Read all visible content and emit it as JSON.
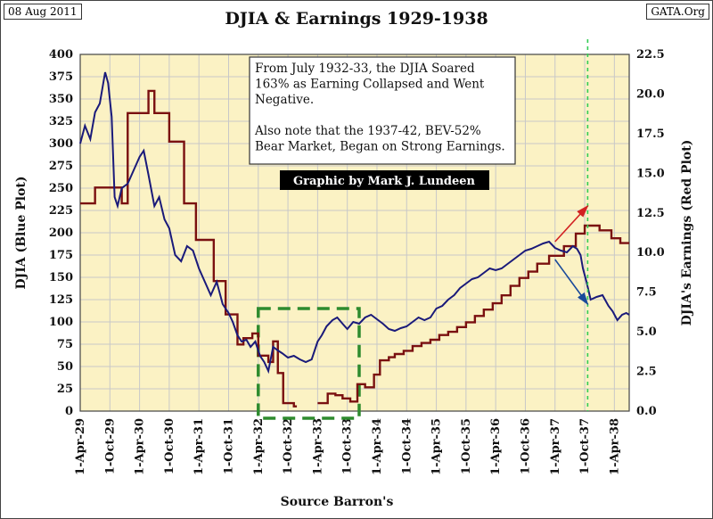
{
  "header": {
    "date": "08 Aug 2011",
    "source": "GATA.Org"
  },
  "chart_data": {
    "type": "line",
    "title": "DJIA & Earnings 1929-1938",
    "xlabel": "Source Barron's",
    "ylabel_left": "DJIA (Blue Plot)",
    "ylabel_right": "DJIA's Earnings (Red Plot)",
    "y_left_range": [
      0,
      400
    ],
    "y_right_range": [
      0,
      22.5
    ],
    "y_left_ticks": [
      "0",
      "25",
      "50",
      "75",
      "100",
      "125",
      "150",
      "175",
      "200",
      "225",
      "250",
      "275",
      "300",
      "325",
      "350",
      "375",
      "400"
    ],
    "y_right_ticks": [
      "0.0",
      "2.5",
      "5.0",
      "7.5",
      "10.0",
      "12.5",
      "15.0",
      "17.5",
      "20.0",
      "22.5"
    ],
    "x_range": [
      1929.25,
      1938.5
    ],
    "x_ticks": [
      {
        "x": 1929.25,
        "label": "1-Apr-29"
      },
      {
        "x": 1929.75,
        "label": "1-Oct-29"
      },
      {
        "x": 1930.25,
        "label": "1-Apr-30"
      },
      {
        "x": 1930.75,
        "label": "1-Oct-30"
      },
      {
        "x": 1931.25,
        "label": "1-Apr-31"
      },
      {
        "x": 1931.75,
        "label": "1-Oct-31"
      },
      {
        "x": 1932.25,
        "label": "1-Apr-32"
      },
      {
        "x": 1932.75,
        "label": "1-Oct-32"
      },
      {
        "x": 1933.25,
        "label": "1-Apr-33"
      },
      {
        "x": 1933.75,
        "label": "1-Oct-33"
      },
      {
        "x": 1934.25,
        "label": "1-Apr-34"
      },
      {
        "x": 1934.75,
        "label": "1-Oct-34"
      },
      {
        "x": 1935.25,
        "label": "1-Apr-35"
      },
      {
        "x": 1935.75,
        "label": "1-Oct-35"
      },
      {
        "x": 1936.25,
        "label": "1-Apr-36"
      },
      {
        "x": 1936.75,
        "label": "1-Oct-36"
      },
      {
        "x": 1937.25,
        "label": "1-Apr-37"
      },
      {
        "x": 1937.75,
        "label": "1-Oct-37"
      },
      {
        "x": 1938.25,
        "label": "1-Apr-38"
      }
    ],
    "grid": true,
    "series": [
      {
        "name": "DJIA",
        "axis": "left",
        "color": "#1a1a7a",
        "points": [
          [
            1929.25,
            300
          ],
          [
            1929.33,
            320
          ],
          [
            1929.42,
            305
          ],
          [
            1929.5,
            335
          ],
          [
            1929.58,
            345
          ],
          [
            1929.67,
            380
          ],
          [
            1929.72,
            368
          ],
          [
            1929.78,
            330
          ],
          [
            1929.83,
            240
          ],
          [
            1929.88,
            230
          ],
          [
            1929.95,
            250
          ],
          [
            1930.05,
            255
          ],
          [
            1930.15,
            270
          ],
          [
            1930.25,
            285
          ],
          [
            1930.32,
            292
          ],
          [
            1930.4,
            265
          ],
          [
            1930.5,
            230
          ],
          [
            1930.58,
            240
          ],
          [
            1930.67,
            215
          ],
          [
            1930.75,
            205
          ],
          [
            1930.85,
            175
          ],
          [
            1930.95,
            168
          ],
          [
            1931.05,
            185
          ],
          [
            1931.15,
            180
          ],
          [
            1931.25,
            160
          ],
          [
            1931.35,
            145
          ],
          [
            1931.45,
            130
          ],
          [
            1931.55,
            145
          ],
          [
            1931.65,
            120
          ],
          [
            1931.75,
            110
          ],
          [
            1931.82,
            100
          ],
          [
            1931.9,
            85
          ],
          [
            1931.97,
            78
          ],
          [
            1932.05,
            80
          ],
          [
            1932.12,
            72
          ],
          [
            1932.2,
            78
          ],
          [
            1932.28,
            62
          ],
          [
            1932.35,
            55
          ],
          [
            1932.42,
            45
          ],
          [
            1932.5,
            72
          ],
          [
            1932.58,
            68
          ],
          [
            1932.65,
            65
          ],
          [
            1932.75,
            60
          ],
          [
            1932.85,
            62
          ],
          [
            1932.95,
            58
          ],
          [
            1933.05,
            55
          ],
          [
            1933.15,
            58
          ],
          [
            1933.25,
            78
          ],
          [
            1933.32,
            85
          ],
          [
            1933.4,
            95
          ],
          [
            1933.5,
            102
          ],
          [
            1933.58,
            105
          ],
          [
            1933.67,
            98
          ],
          [
            1933.75,
            92
          ],
          [
            1933.85,
            100
          ],
          [
            1933.95,
            98
          ],
          [
            1934.05,
            105
          ],
          [
            1934.15,
            108
          ],
          [
            1934.25,
            103
          ],
          [
            1934.35,
            98
          ],
          [
            1934.45,
            92
          ],
          [
            1934.55,
            90
          ],
          [
            1934.65,
            93
          ],
          [
            1934.75,
            95
          ],
          [
            1934.85,
            100
          ],
          [
            1934.95,
            105
          ],
          [
            1935.05,
            102
          ],
          [
            1935.15,
            105
          ],
          [
            1935.25,
            115
          ],
          [
            1935.35,
            118
          ],
          [
            1935.45,
            125
          ],
          [
            1935.55,
            130
          ],
          [
            1935.65,
            138
          ],
          [
            1935.75,
            143
          ],
          [
            1935.85,
            148
          ],
          [
            1935.95,
            150
          ],
          [
            1936.05,
            155
          ],
          [
            1936.15,
            160
          ],
          [
            1936.25,
            158
          ],
          [
            1936.35,
            160
          ],
          [
            1936.45,
            165
          ],
          [
            1936.55,
            170
          ],
          [
            1936.65,
            175
          ],
          [
            1936.75,
            180
          ],
          [
            1936.85,
            182
          ],
          [
            1936.95,
            185
          ],
          [
            1937.05,
            188
          ],
          [
            1937.15,
            190
          ],
          [
            1937.25,
            183
          ],
          [
            1937.35,
            180
          ],
          [
            1937.45,
            178
          ],
          [
            1937.55,
            185
          ],
          [
            1937.62,
            182
          ],
          [
            1937.68,
            175
          ],
          [
            1937.72,
            160
          ],
          [
            1937.78,
            145
          ],
          [
            1937.85,
            125
          ],
          [
            1937.95,
            128
          ],
          [
            1938.05,
            130
          ],
          [
            1938.15,
            118
          ],
          [
            1938.22,
            112
          ],
          [
            1938.3,
            102
          ],
          [
            1938.38,
            108
          ],
          [
            1938.45,
            110
          ],
          [
            1938.5,
            108
          ]
        ]
      },
      {
        "name": "Earnings",
        "axis": "right",
        "color": "#7a1010",
        "steps": [
          [
            1929.25,
            13.1
          ],
          [
            1929.5,
            14.1
          ],
          [
            1929.95,
            13.1
          ],
          [
            1930.05,
            18.8
          ],
          [
            1930.32,
            18.8
          ],
          [
            1930.4,
            20.2
          ],
          [
            1930.5,
            18.8
          ],
          [
            1930.75,
            17.0
          ],
          [
            1931.0,
            13.1
          ],
          [
            1931.2,
            10.8
          ],
          [
            1931.5,
            8.2
          ],
          [
            1931.7,
            6.1
          ],
          [
            1931.9,
            4.2
          ],
          [
            1932.0,
            4.6
          ],
          [
            1932.15,
            4.9
          ],
          [
            1932.25,
            3.5
          ],
          [
            1932.42,
            3.1
          ],
          [
            1932.5,
            4.4
          ],
          [
            1932.58,
            2.4
          ],
          [
            1932.67,
            0.5
          ],
          [
            1932.85,
            0.3
          ],
          [
            1932.9,
            null
          ],
          [
            1933.25,
            0.5
          ],
          [
            1933.42,
            1.1
          ],
          [
            1933.55,
            1.0
          ],
          [
            1933.67,
            0.8
          ],
          [
            1933.8,
            0.6
          ],
          [
            1933.92,
            1.7
          ],
          [
            1934.05,
            1.5
          ],
          [
            1934.2,
            2.3
          ],
          [
            1934.3,
            3.2
          ],
          [
            1934.45,
            3.4
          ],
          [
            1934.55,
            3.6
          ],
          [
            1934.7,
            3.8
          ],
          [
            1934.85,
            4.1
          ],
          [
            1935.0,
            4.3
          ],
          [
            1935.15,
            4.5
          ],
          [
            1935.3,
            4.8
          ],
          [
            1935.45,
            5.0
          ],
          [
            1935.6,
            5.3
          ],
          [
            1935.75,
            5.6
          ],
          [
            1935.9,
            6.0
          ],
          [
            1936.05,
            6.4
          ],
          [
            1936.2,
            6.8
          ],
          [
            1936.35,
            7.3
          ],
          [
            1936.5,
            7.9
          ],
          [
            1936.65,
            8.4
          ],
          [
            1936.8,
            8.8
          ],
          [
            1936.95,
            9.3
          ],
          [
            1937.15,
            9.8
          ],
          [
            1937.4,
            10.4
          ],
          [
            1937.6,
            11.2
          ],
          [
            1937.75,
            11.7
          ],
          [
            1938.0,
            11.4
          ],
          [
            1938.2,
            10.9
          ],
          [
            1938.35,
            10.6
          ],
          [
            1938.5,
            10.6
          ]
        ]
      }
    ],
    "annotation": {
      "lines": [
        "From July 1932-33, the DJIA Soared",
        "163% as Earning Collapsed and Went",
        "Negative.",
        "",
        "Also note that the 1937-42, BEV-52%",
        "Bear Market, Began on Strong Earnings."
      ]
    },
    "credit": "Graphic by Mark J. Lundeen",
    "highlight_box": {
      "x": [
        1932.25,
        1933.95
      ],
      "y_left": [
        0,
        115
      ],
      "color": "#2e8b2e"
    },
    "vline": {
      "x": 1937.8,
      "color": "#33cc55"
    },
    "arrows": [
      {
        "from": [
          1937.25,
          190
        ],
        "to": [
          1937.8,
          230
        ],
        "color": "#d22222"
      },
      {
        "from": [
          1937.25,
          170
        ],
        "to": [
          1937.8,
          120
        ],
        "color": "#1a4a9a"
      }
    ],
    "colors": {
      "plot_bg": "#fbf2c4",
      "grid": "#c8c8c8"
    }
  }
}
